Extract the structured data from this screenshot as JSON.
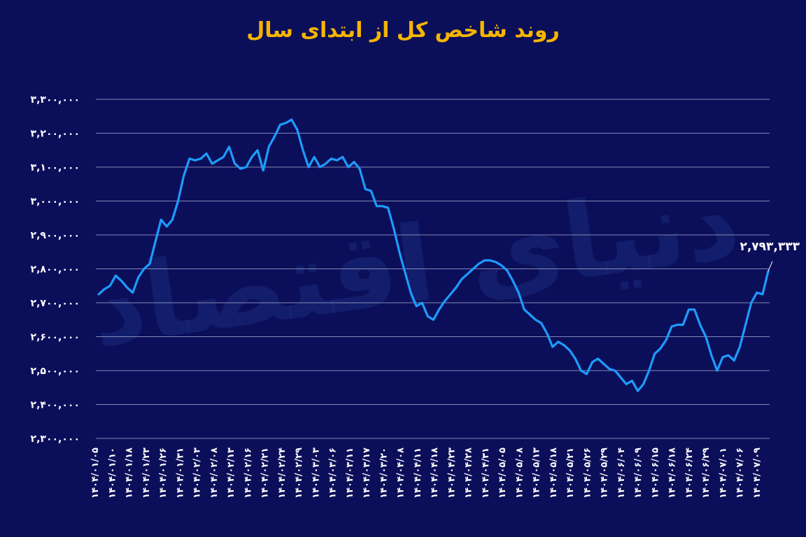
{
  "chart_data": {
    "type": "line",
    "title": "روند شاخص کل از ابتدای سال",
    "xlabel": "",
    "ylabel": "",
    "ylim": [
      2300000,
      3300000
    ],
    "yticks": [
      {
        "value": 3300000,
        "label": "۳,۳۰۰,۰۰۰"
      },
      {
        "value": 3200000,
        "label": "۳,۲۰۰,۰۰۰"
      },
      {
        "value": 3100000,
        "label": "۳,۱۰۰,۰۰۰"
      },
      {
        "value": 3000000,
        "label": "۳,۰۰۰,۰۰۰"
      },
      {
        "value": 2900000,
        "label": "۲,۹۰۰,۰۰۰"
      },
      {
        "value": 2800000,
        "label": "۲,۸۰۰,۰۰۰"
      },
      {
        "value": 2700000,
        "label": "۲,۷۰۰,۰۰۰"
      },
      {
        "value": 2600000,
        "label": "۲,۶۰۰,۰۰۰"
      },
      {
        "value": 2500000,
        "label": "۲,۵۰۰,۰۰۰"
      },
      {
        "value": 2400000,
        "label": "۲,۴۰۰,۰۰۰"
      },
      {
        "value": 2300000,
        "label": "۲,۳۰۰,۰۰۰"
      }
    ],
    "x_tick_labels": [
      "۱۴۰۴/۰۱/۰۵",
      "۱۴۰۴/۰۱/۱۰",
      "۱۴۰۴/۰۱/۱۸",
      "۱۴۰۴/۰۱/۲۳",
      "۱۴۰۴/۰۱/۲۶",
      "۱۴۰۴/۰۱/۳۱",
      "۱۴۰۴/۰۲/۰۳",
      "۱۴۰۴/۰۲/۰۸",
      "۱۴۰۴/۰۲/۱۳",
      "۱۴۰۴/۰۲/۱۶",
      "۱۴۰۴/۰۲/۲۱",
      "۱۴۰۴/۰۲/۲۴",
      "۱۴۰۴/۰۲/۲۹",
      "۱۴۰۴/۰۳/۰۳",
      "۱۴۰۴/۰۳/۰۶",
      "۱۴۰۴/۰۳/۱۱",
      "۱۴۰۴/۰۳/۱۷",
      "۱۴۰۴/۰۳/۲۰",
      "۱۴۰۴/۰۴/۰۸",
      "۱۴۰۴/۰۴/۱۱",
      "۱۴۰۴/۰۴/۱۸",
      "۱۴۰۴/۰۴/۲۳",
      "۱۴۰۴/۰۴/۲۸",
      "۱۴۰۴/۰۴/۳۱",
      "۱۴۰۴/۰۵/۰۵",
      "۱۴۰۴/۰۵/۰۸",
      "۱۴۰۴/۰۵/۱۳",
      "۱۴۰۴/۰۵/۱۸",
      "۱۴۰۴/۰۵/۲۱",
      "۱۴۰۴/۰۵/۲۶",
      "۱۴۰۴/۰۵/۲۹",
      "۱۴۰۴/۰۶/۰۴",
      "۱۴۰۴/۰۶/۰۹",
      "۱۴۰۴/۰۶/۱۵",
      "۱۴۰۴/۰۶/۱۸",
      "۱۴۰۴/۰۶/۲۴",
      "۱۴۰۴/۰۶/۲۹",
      "۱۴۰۴/۰۷/۰۱",
      "۱۴۰۴/۰۷/۰۶",
      "۱۴۰۴/۰۷/۰۹"
    ],
    "series": [
      {
        "color": "#1e9bff",
        "values": [
          2725000,
          2740000,
          2750000,
          2780000,
          2765000,
          2745000,
          2730000,
          2775000,
          2800000,
          2815000,
          2880000,
          2945000,
          2925000,
          2945000,
          3000000,
          3075000,
          3125000,
          3120000,
          3125000,
          3140000,
          3110000,
          3120000,
          3130000,
          3160000,
          3110000,
          3095000,
          3100000,
          3130000,
          3150000,
          3090000,
          3160000,
          3190000,
          3225000,
          3230000,
          3240000,
          3210000,
          3150000,
          3100000,
          3130000,
          3100000,
          3110000,
          3125000,
          3120000,
          3130000,
          3100000,
          3115000,
          3095000,
          3035000,
          3030000,
          2985000,
          2985000,
          2980000,
          2920000,
          2850000,
          2790000,
          2730000,
          2690000,
          2700000,
          2660000,
          2650000,
          2680000,
          2705000,
          2725000,
          2745000,
          2770000,
          2785000,
          2800000,
          2815000,
          2825000,
          2825000,
          2820000,
          2810000,
          2795000,
          2765000,
          2730000,
          2680000,
          2665000,
          2650000,
          2640000,
          2610000,
          2570000,
          2585000,
          2575000,
          2560000,
          2535000,
          2500000,
          2490000,
          2525000,
          2535000,
          2520000,
          2505000,
          2500000,
          2480000,
          2460000,
          2470000,
          2440000,
          2460000,
          2500000,
          2550000,
          2565000,
          2590000,
          2630000,
          2635000,
          2635000,
          2680000,
          2680000,
          2635000,
          2600000,
          2545000,
          2500000,
          2540000,
          2545000,
          2530000,
          2570000,
          2635000,
          2700000,
          2730000,
          2725000,
          2793333
        ]
      }
    ],
    "last_value_label": "۲,۷۹۳,۳۳۳",
    "grid": true,
    "legend": "none"
  },
  "watermark_text": "دنیای اقتصاد"
}
